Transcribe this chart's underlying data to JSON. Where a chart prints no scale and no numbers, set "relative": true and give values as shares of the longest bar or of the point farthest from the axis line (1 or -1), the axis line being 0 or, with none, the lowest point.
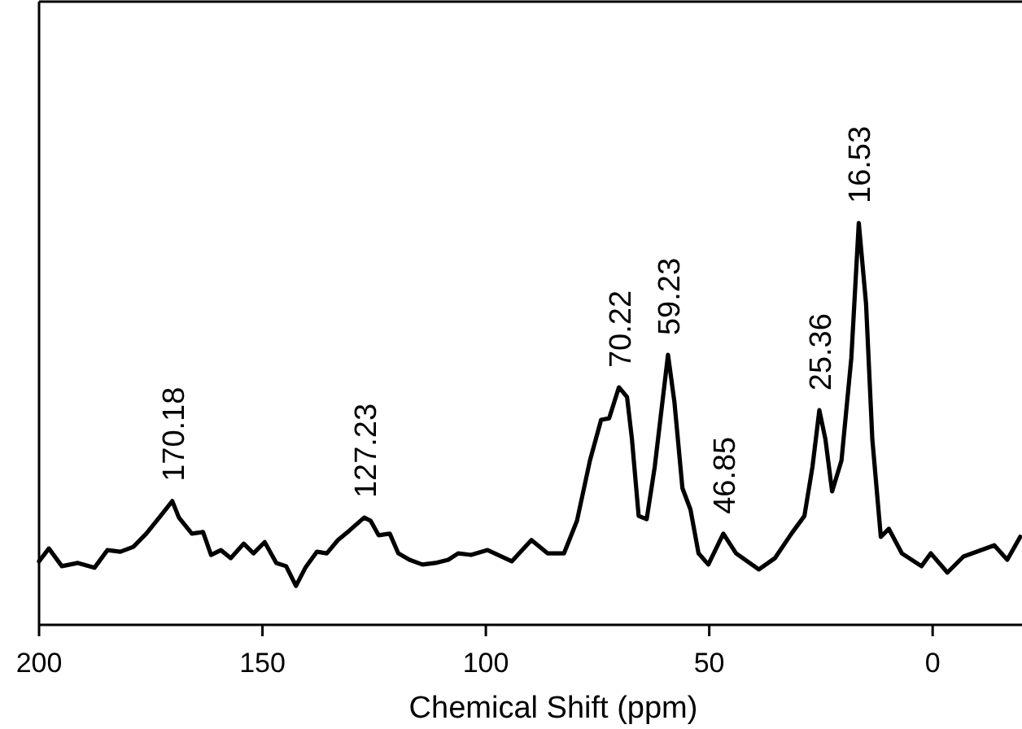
{
  "chart_data": {
    "type": "line",
    "relative": true,
    "xlabel": "Chemical Shift (ppm)",
    "xlim": [
      200,
      -20
    ],
    "xticks": [
      200,
      150,
      100,
      50,
      0
    ],
    "grid": false,
    "marker": "none",
    "line_style": "solid",
    "series": [
      {
        "color": "#000000",
        "x": [
          200,
          197.8,
          194.9,
          191.3,
          187.6,
          184.7,
          181.8,
          178.9,
          176,
          173.1,
          170.18,
          168.7,
          165.8,
          163.3,
          161.5,
          159.3,
          157.1,
          154.2,
          152,
          149.5,
          146.9,
          144.7,
          142.5,
          140.4,
          137.8,
          135.6,
          133.1,
          130.5,
          127.23,
          125.8,
          124,
          121.5,
          119.6,
          117.1,
          114.2,
          111.3,
          108.4,
          106.2,
          103.3,
          99.6,
          94.2,
          89.8,
          86.2,
          82.5,
          79.6,
          76.7,
          74.2,
          72.4,
          70.22,
          68.4,
          67.3,
          65.8,
          64,
          62.2,
          59.23,
          57.8,
          56,
          54.2,
          52.4,
          50.2,
          46.85,
          44,
          38.9,
          35.3,
          31.6,
          28.7,
          26.9,
          25.36,
          24,
          22.5,
          20.4,
          18.2,
          16.53,
          14.9,
          13.5,
          11.6,
          9.8,
          6.9,
          2.5,
          0.4,
          -3.3,
          -6.9,
          -13.8,
          -16.7,
          -19.6
        ],
        "values": [
          0.158,
          0.19,
          0.146,
          0.154,
          0.142,
          0.186,
          0.182,
          0.194,
          0.227,
          0.267,
          0.308,
          0.267,
          0.227,
          0.231,
          0.174,
          0.186,
          0.166,
          0.202,
          0.178,
          0.206,
          0.154,
          0.146,
          0.097,
          0.142,
          0.182,
          0.178,
          0.211,
          0.235,
          0.267,
          0.259,
          0.223,
          0.227,
          0.178,
          0.162,
          0.15,
          0.154,
          0.162,
          0.178,
          0.174,
          0.186,
          0.158,
          0.211,
          0.178,
          0.178,
          0.259,
          0.409,
          0.51,
          0.514,
          0.591,
          0.567,
          0.462,
          0.271,
          0.263,
          0.393,
          0.672,
          0.555,
          0.34,
          0.287,
          0.178,
          0.15,
          0.227,
          0.178,
          0.138,
          0.166,
          0.227,
          0.271,
          0.393,
          0.534,
          0.462,
          0.332,
          0.409,
          0.664,
          1,
          0.798,
          0.462,
          0.219,
          0.239,
          0.178,
          0.146,
          0.178,
          0.13,
          0.17,
          0.198,
          0.162,
          0.219
        ]
      }
    ],
    "annotations": [
      {
        "text": "170.18",
        "x": 170.18,
        "y": 0.308
      },
      {
        "text": "127.23",
        "x": 127.23,
        "y": 0.267
      },
      {
        "text": "70.22",
        "x": 70.22,
        "y": 0.591
      },
      {
        "text": "59.23",
        "x": 59.23,
        "y": 0.672
      },
      {
        "text": "46.85",
        "x": 46.85,
        "y": 0.227
      },
      {
        "text": "25.36",
        "x": 25.36,
        "y": 0.534
      },
      {
        "text": "16.53",
        "x": 16.53,
        "y": 1
      }
    ]
  }
}
